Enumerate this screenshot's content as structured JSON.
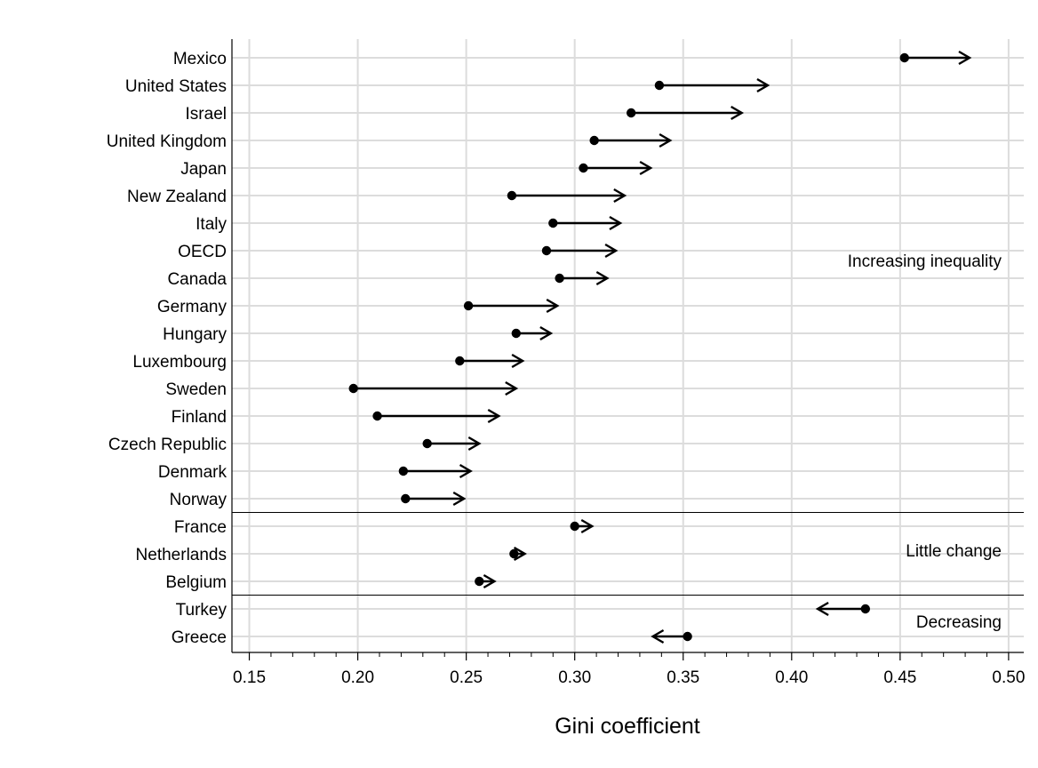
{
  "chart_data": {
    "type": "dot-arrow",
    "xlabel": "Gini coefficient",
    "xlim": [
      0.142,
      0.507
    ],
    "xticks": [
      "0.15",
      "0.20",
      "0.25",
      "0.30",
      "0.35",
      "0.40",
      "0.45",
      "0.50"
    ],
    "grid": true,
    "countries": [
      {
        "name": "Mexico",
        "start": 0.452,
        "end": 0.482
      },
      {
        "name": "United States",
        "start": 0.339,
        "end": 0.389
      },
      {
        "name": "Israel",
        "start": 0.326,
        "end": 0.377
      },
      {
        "name": "United Kingdom",
        "start": 0.309,
        "end": 0.344
      },
      {
        "name": "Japan",
        "start": 0.304,
        "end": 0.335
      },
      {
        "name": "New Zealand",
        "start": 0.271,
        "end": 0.323
      },
      {
        "name": "Italy",
        "start": 0.29,
        "end": 0.321
      },
      {
        "name": "OECD",
        "start": 0.287,
        "end": 0.319
      },
      {
        "name": "Canada",
        "start": 0.293,
        "end": 0.315
      },
      {
        "name": "Germany",
        "start": 0.251,
        "end": 0.292
      },
      {
        "name": "Hungary",
        "start": 0.273,
        "end": 0.289
      },
      {
        "name": "Luxembourg",
        "start": 0.247,
        "end": 0.276
      },
      {
        "name": "Sweden",
        "start": 0.198,
        "end": 0.273
      },
      {
        "name": "Finland",
        "start": 0.209,
        "end": 0.265
      },
      {
        "name": "Czech Republic",
        "start": 0.232,
        "end": 0.256
      },
      {
        "name": "Denmark",
        "start": 0.221,
        "end": 0.252
      },
      {
        "name": "Norway",
        "start": 0.222,
        "end": 0.249
      },
      {
        "name": "France",
        "start": 0.3,
        "end": 0.308
      },
      {
        "name": "Netherlands",
        "start": 0.272,
        "end": 0.277
      },
      {
        "name": "Belgium",
        "start": 0.256,
        "end": 0.263
      },
      {
        "name": "Turkey",
        "start": 0.434,
        "end": 0.412
      },
      {
        "name": "Greece",
        "start": 0.352,
        "end": 0.336
      }
    ],
    "groups": [
      {
        "label": "Increasing inequality",
        "first": 0,
        "last": 16
      },
      {
        "label": "Little change",
        "first": 17,
        "last": 19
      },
      {
        "label": "Decreasing",
        "first": 20,
        "last": 21
      }
    ]
  }
}
